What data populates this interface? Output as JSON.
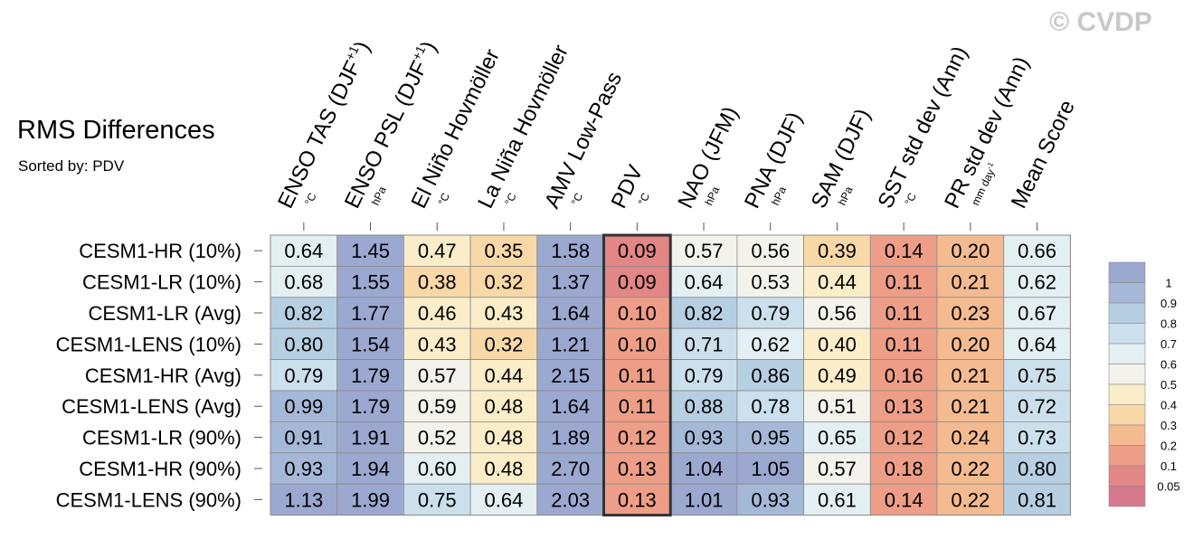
{
  "title": "RMS Differences",
  "subtitle": "Sorted by: PDV",
  "watermark": "© CVDP",
  "colors": {
    "cell_border": "#8a8a8a",
    "highlight_border": "#333333",
    "tick": "#555555"
  },
  "chart_data": {
    "type": "heatmap",
    "title": "RMS Differences",
    "sorted_by": "PDV",
    "highlight_column": "PDV",
    "columns": [
      {
        "label": "ENSO TAS (DJF",
        "sup": "+1",
        "close": ")",
        "unit": "°C"
      },
      {
        "label": "ENSO PSL (DJF",
        "sup": "+1",
        "close": ")",
        "unit": "hPa"
      },
      {
        "label": "El Niño Hovmöller",
        "unit": "°C"
      },
      {
        "label": "La Niña Hovmöller",
        "unit": "°C"
      },
      {
        "label": "AMV Low-Pass",
        "unit": "°C"
      },
      {
        "label": "PDV",
        "unit": "°C"
      },
      {
        "label": "NAO (JFM)",
        "unit": "hPa"
      },
      {
        "label": "PNA (DJF)",
        "unit": "hPa"
      },
      {
        "label": "SAM (DJF)",
        "unit": "hPa"
      },
      {
        "label": "SST std dev (Ann)",
        "unit": "°C"
      },
      {
        "label": "PR std dev (Ann)",
        "unit": "mm day",
        "unit_sup": "-1"
      },
      {
        "label": "Mean Score",
        "unit": ""
      }
    ],
    "rows": [
      "CESM1-HR (10%)",
      "CESM1-LR (10%)",
      "CESM1-LR (Avg)",
      "CESM1-LENS (10%)",
      "CESM1-HR (Avg)",
      "CESM1-LENS (Avg)",
      "CESM1-LR (90%)",
      "CESM1-HR (90%)",
      "CESM1-LENS (90%)"
    ],
    "values": [
      [
        "0.64",
        "1.45",
        "0.47",
        "0.35",
        "1.58",
        "0.09",
        "0.57",
        "0.56",
        "0.39",
        "0.14",
        "0.20",
        "0.66"
      ],
      [
        "0.68",
        "1.55",
        "0.38",
        "0.32",
        "1.37",
        "0.09",
        "0.64",
        "0.53",
        "0.44",
        "0.11",
        "0.21",
        "0.62"
      ],
      [
        "0.82",
        "1.77",
        "0.46",
        "0.43",
        "1.64",
        "0.10",
        "0.82",
        "0.79",
        "0.56",
        "0.11",
        "0.23",
        "0.67"
      ],
      [
        "0.80",
        "1.54",
        "0.43",
        "0.32",
        "1.21",
        "0.10",
        "0.71",
        "0.62",
        "0.40",
        "0.11",
        "0.20",
        "0.64"
      ],
      [
        "0.79",
        "1.79",
        "0.57",
        "0.44",
        "2.15",
        "0.11",
        "0.79",
        "0.86",
        "0.49",
        "0.16",
        "0.21",
        "0.75"
      ],
      [
        "0.99",
        "1.79",
        "0.59",
        "0.48",
        "1.64",
        "0.11",
        "0.88",
        "0.78",
        "0.51",
        "0.13",
        "0.21",
        "0.72"
      ],
      [
        "0.91",
        "1.91",
        "0.52",
        "0.48",
        "1.89",
        "0.12",
        "0.93",
        "0.95",
        "0.65",
        "0.12",
        "0.24",
        "0.73"
      ],
      [
        "0.93",
        "1.94",
        "0.60",
        "0.48",
        "2.70",
        "0.13",
        "1.04",
        "1.05",
        "0.57",
        "0.18",
        "0.22",
        "0.80"
      ],
      [
        "1.13",
        "1.99",
        "0.75",
        "0.64",
        "2.03",
        "0.13",
        "1.01",
        "0.93",
        "0.61",
        "0.14",
        "0.22",
        "0.81"
      ]
    ],
    "colorbar": {
      "levels": [
        "1",
        "0.9",
        "0.8",
        "0.7",
        "0.6",
        "0.5",
        "0.4",
        "0.3",
        "0.2",
        "0.1",
        "0.05"
      ],
      "colors": [
        "#9ba8d0",
        "#a6b8d8",
        "#b7cfe2",
        "#cbe0ec",
        "#e4eff3",
        "#f3f3ec",
        "#fbedc8",
        "#f9d8a7",
        "#f5bb90",
        "#ee9e87",
        "#e38686",
        "#d6798d"
      ]
    }
  }
}
